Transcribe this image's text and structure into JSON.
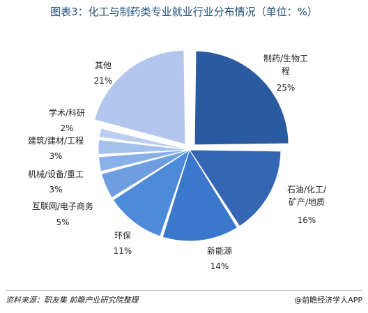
{
  "chart_data": {
    "type": "pie",
    "title": "图表3：化工与制药类专业就业行业分布情况（单位：%）",
    "slices": [
      {
        "name": "制药/生物工程",
        "value": 25,
        "value_label": "25%",
        "color": "#2a5aa0",
        "exploded": true
      },
      {
        "name": "石油/化工/矿产/地质",
        "value": 16,
        "value_label": "16%",
        "color": "#3466b3"
      },
      {
        "name": "新能源",
        "value": 14,
        "value_label": "14%",
        "color": "#3a78cc"
      },
      {
        "name": "环保",
        "value": 11,
        "value_label": "11%",
        "color": "#4d8ad8"
      },
      {
        "name": "互联网/电子商务",
        "value": 5,
        "value_label": "5%",
        "color": "#6e9ee0"
      },
      {
        "name": "机械/设备/重工",
        "value": 3,
        "value_label": "3%",
        "color": "#8ab1e7"
      },
      {
        "name": "建筑/建材/工程",
        "value": 3,
        "value_label": "3%",
        "color": "#a3c1ec"
      },
      {
        "name": "学术/科研",
        "value": 2,
        "value_label": "2%",
        "color": "#bccff0"
      },
      {
        "name": "其他",
        "value": 21,
        "value_label": "21%",
        "color": "#b3c7ee",
        "exploded": true
      }
    ]
  },
  "footer": {
    "source": "资料来源：职友集 前瞻产业研究院整理",
    "brand": "@前瞻经济学人APP"
  }
}
